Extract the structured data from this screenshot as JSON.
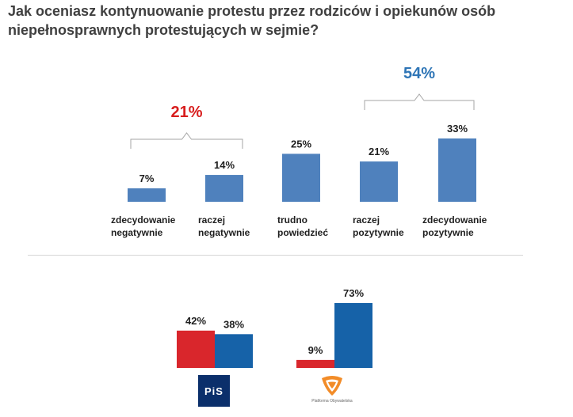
{
  "title": {
    "line1": "Jak oceniasz kontynuowanie protestu przez rodziców i opiekunów osób",
    "line2": "niepełnosprawnych protestujących w sejmie?"
  },
  "groups": {
    "negative_total": "21%",
    "positive_total": "54%",
    "negative_color": "#d81e1e",
    "positive_color": "#2e75b6"
  },
  "chart_data": [
    {
      "type": "bar",
      "categories": [
        "zdecydowanie negatywnie",
        "raczej negatywnie",
        "trudno powiedzieć",
        "raczej pozytywnie",
        "zdecydowanie pozytywnie"
      ],
      "category_lines": [
        [
          "zdecydowanie",
          "negatywnie"
        ],
        [
          "raczej",
          "negatywnie"
        ],
        [
          "trudno",
          "powiedzieć"
        ],
        [
          "raczej",
          "pozytywnie"
        ],
        [
          "zdecydowanie",
          "pozytywnie"
        ]
      ],
      "values": [
        7,
        14,
        25,
        21,
        33
      ],
      "labels": [
        "7%",
        "14%",
        "25%",
        "21%",
        "33%"
      ],
      "color": "#4f81bd"
    },
    {
      "type": "bar",
      "groups": [
        "PiS",
        "Platforma Obywatelska"
      ],
      "series": [
        {
          "color": "#d9262c",
          "values": [
            42,
            9
          ],
          "labels": [
            "42%",
            "9%"
          ]
        },
        {
          "color": "#1662a8",
          "values": [
            38,
            73
          ],
          "labels": [
            "38%",
            "73%"
          ]
        }
      ]
    }
  ],
  "logos": {
    "pis": "PiS",
    "po": "Platforma Obywatelska"
  }
}
